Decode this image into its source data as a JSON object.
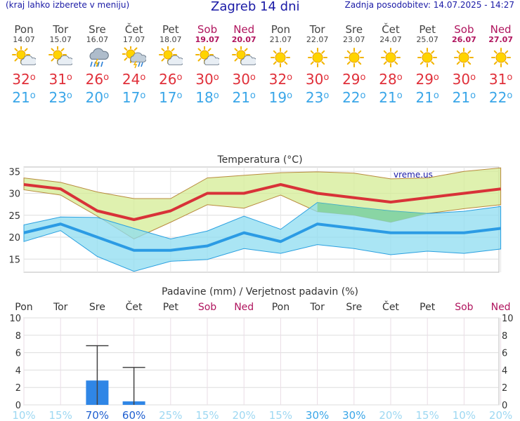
{
  "header": {
    "region_link": "(kraj lahko izberete v meniju)",
    "title": "Zagreb 14 dni",
    "updated": "Zadnja posodobitev: 14.07.2025 - 14:27"
  },
  "days": [
    {
      "name": "Pon",
      "date": "14.07",
      "icon": "sun-cloud-icon",
      "max": "32",
      "min": "21",
      "weekend": false
    },
    {
      "name": "Tor",
      "date": "15.07",
      "icon": "sun-cloud-icon",
      "max": "31",
      "min": "23",
      "weekend": false
    },
    {
      "name": "Sre",
      "date": "16.07",
      "icon": "storm-rain-icon",
      "max": "26",
      "min": "20",
      "weekend": false
    },
    {
      "name": "Čet",
      "date": "17.07",
      "icon": "sun-storm-icon",
      "max": "24",
      "min": "17",
      "weekend": false
    },
    {
      "name": "Pet",
      "date": "18.07",
      "icon": "sun-cloud-icon",
      "max": "26",
      "min": "17",
      "weekend": false
    },
    {
      "name": "Sob",
      "date": "19.07",
      "icon": "sun-cloud-icon",
      "max": "30",
      "min": "18",
      "weekend": true
    },
    {
      "name": "Ned",
      "date": "20.07",
      "icon": "sun-cloud-icon",
      "max": "30",
      "min": "21",
      "weekend": true
    },
    {
      "name": "Pon",
      "date": "21.07",
      "icon": "sun-icon",
      "max": "32",
      "min": "19",
      "weekend": false
    },
    {
      "name": "Tor",
      "date": "22.07",
      "icon": "sun-icon",
      "max": "30",
      "min": "23",
      "weekend": false
    },
    {
      "name": "Sre",
      "date": "23.07",
      "icon": "sun-icon",
      "max": "29",
      "min": "22",
      "weekend": false
    },
    {
      "name": "Čet",
      "date": "24.07",
      "icon": "sun-icon",
      "max": "28",
      "min": "21",
      "weekend": false
    },
    {
      "name": "Pet",
      "date": "25.07",
      "icon": "sun-icon",
      "max": "29",
      "min": "21",
      "weekend": false
    },
    {
      "name": "Sob",
      "date": "26.07",
      "icon": "sun-icon",
      "max": "30",
      "min": "21",
      "weekend": true
    },
    {
      "name": "Ned",
      "date": "27.07",
      "icon": "sun-icon",
      "max": "31",
      "min": "22",
      "weekend": true
    }
  ],
  "degree_symbol": "o",
  "colors": {
    "max": "#e0303a",
    "min": "#3aa6e8",
    "weekend": "#b0155e",
    "max_band": "#d4ec94",
    "min_band": "#8edcf0",
    "precip": "#2f86e6"
  },
  "chart_data": [
    {
      "type": "line",
      "title": "Temperatura (°C)",
      "watermark": "vreme.us",
      "ylim": [
        12,
        36
      ],
      "yticks": [
        15,
        20,
        25,
        30,
        35
      ],
      "x": [
        1,
        2,
        3,
        4,
        5,
        6,
        7,
        8,
        9,
        10,
        11,
        12,
        13,
        14
      ],
      "series": [
        {
          "name": "max",
          "values": [
            32,
            31,
            26,
            24,
            26,
            30,
            30,
            32,
            30,
            29,
            28,
            29,
            30,
            31
          ]
        },
        {
          "name": "min",
          "values": [
            21,
            23,
            20,
            17,
            17,
            18,
            21,
            19,
            23,
            22,
            21,
            21,
            21,
            22
          ]
        }
      ],
      "max_band": {
        "upper": [
          33.5,
          32.5,
          30.3,
          28.8,
          28.8,
          33.5,
          34.1,
          34.7,
          34.9,
          34.6,
          33.3,
          33.5,
          35,
          35.8
        ],
        "lower": [
          30.8,
          29.6,
          24.8,
          19.6,
          23.4,
          27.4,
          26.6,
          29.6,
          25.8,
          25,
          23.4,
          25.4,
          26.5,
          27.4
        ]
      },
      "min_band": {
        "upper": [
          22.8,
          24.6,
          24.5,
          22,
          19.6,
          21.4,
          24.8,
          21.8,
          27.9,
          26.9,
          26,
          25.4,
          25.9,
          27
        ],
        "lower": [
          19,
          21.5,
          15.6,
          12.2,
          14.5,
          14.9,
          17.4,
          16.3,
          18.3,
          17.4,
          16,
          16.8,
          16.3,
          17.3
        ]
      },
      "overlap": {
        "from": 9,
        "to": 12,
        "upper": [
          27.9,
          26.9,
          26,
          25.4
        ],
        "lower": [
          25.8,
          25,
          23.4,
          25.4
        ]
      }
    },
    {
      "type": "bar",
      "title": "Padavine (mm) / Verjetnost padavin (%)",
      "categories": [
        "Pon",
        "Tor",
        "Sre",
        "Čet",
        "Pet",
        "Sob",
        "Ned",
        "Pon",
        "Tor",
        "Sre",
        "Čet",
        "Pet",
        "Sob",
        "Ned"
      ],
      "weekend": [
        false,
        false,
        false,
        false,
        false,
        true,
        true,
        false,
        false,
        false,
        false,
        false,
        true,
        true
      ],
      "values": [
        0,
        0,
        2.8,
        0.4,
        0,
        0,
        0,
        0,
        0,
        0,
        0,
        0,
        0,
        0
      ],
      "error_upper": [
        0,
        0,
        6.8,
        4.3,
        0,
        0,
        0,
        0,
        0,
        0,
        0,
        0,
        0,
        0
      ],
      "ylim": [
        0,
        10
      ],
      "yticks": [
        0,
        2,
        4,
        6,
        8,
        10
      ],
      "probability": [
        "10%",
        "15%",
        "70%",
        "60%",
        "25%",
        "15%",
        "20%",
        "15%",
        "30%",
        "30%",
        "20%",
        "15%",
        "10%",
        "20%"
      ],
      "probability_strong": [
        false,
        false,
        true,
        true,
        false,
        false,
        false,
        false,
        true,
        true,
        false,
        false,
        false,
        false
      ]
    }
  ]
}
